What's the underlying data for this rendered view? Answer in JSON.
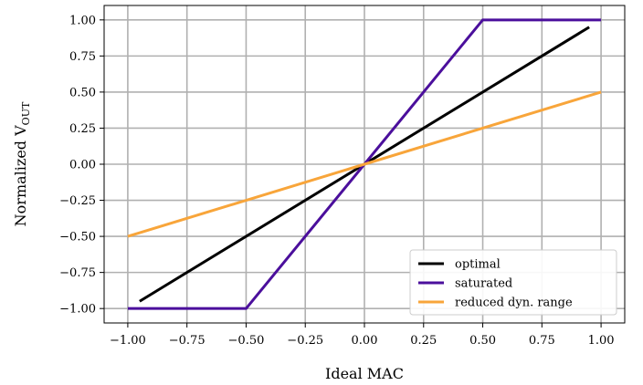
{
  "chart_data": {
    "type": "line",
    "xlabel": "Ideal MAC",
    "ylabel": "Normalized V",
    "ylabel_subscript": "OUT",
    "xlim": [
      -1.1,
      1.1
    ],
    "ylim": [
      -1.1,
      1.1
    ],
    "xticks": [
      -1.0,
      -0.75,
      -0.5,
      -0.25,
      0.0,
      0.25,
      0.5,
      0.75,
      1.0
    ],
    "xtick_labels": [
      "−1.00",
      "−0.75",
      "−0.50",
      "−0.25",
      "0.00",
      "0.25",
      "0.50",
      "0.75",
      "1.00"
    ],
    "yticks": [
      -1.0,
      -0.75,
      -0.5,
      -0.25,
      0.0,
      0.25,
      0.5,
      0.75,
      1.0
    ],
    "ytick_labels": [
      "−1.00",
      "−0.75",
      "−0.50",
      "−0.25",
      "0.00",
      "0.25",
      "0.50",
      "0.75",
      "1.00"
    ],
    "grid": true,
    "legend_position": "bottom-right",
    "series": [
      {
        "name": "optimal",
        "color": "#000000",
        "x": [
          -0.95,
          0.95
        ],
        "y": [
          -0.95,
          0.95
        ]
      },
      {
        "name": "saturated",
        "color": "#4b0f9c",
        "x": [
          -1.0,
          -0.5,
          0.5,
          1.0
        ],
        "y": [
          -1.0,
          -1.0,
          1.0,
          1.0
        ]
      },
      {
        "name": "reduced dyn. range",
        "color": "#f8a53a",
        "x": [
          -1.0,
          1.0
        ],
        "y": [
          -0.5,
          0.5
        ]
      }
    ]
  }
}
